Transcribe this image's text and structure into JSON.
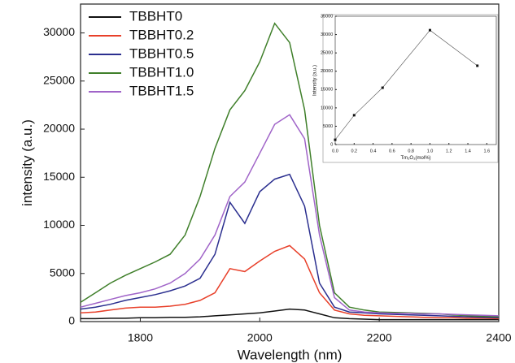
{
  "chart_data": [
    {
      "type": "line",
      "xlabel": "Wavelength (nm)",
      "ylabel": "intensity (a.u.)",
      "x": [
        1700,
        1725,
        1750,
        1775,
        1800,
        1825,
        1850,
        1875,
        1900,
        1925,
        1950,
        1975,
        2000,
        2025,
        2050,
        2075,
        2100,
        2125,
        2150,
        2175,
        2200,
        2225,
        2250,
        2275,
        2300,
        2325,
        2350,
        2375,
        2400
      ],
      "series": [
        {
          "name": "TBBHT0",
          "color": "#111111",
          "values": [
            300,
            300,
            350,
            350,
            400,
            400,
            450,
            450,
            500,
            600,
            700,
            800,
            900,
            1100,
            1300,
            1200,
            800,
            400,
            300,
            250,
            200,
            200,
            200,
            200,
            200,
            200,
            200,
            200,
            200
          ]
        },
        {
          "name": "TBBHT0.2",
          "color": "#e8402a",
          "values": [
            900,
            1000,
            1200,
            1400,
            1500,
            1500,
            1600,
            1800,
            2200,
            3000,
            5500,
            5200,
            6300,
            7300,
            7900,
            6500,
            3000,
            1200,
            800,
            650,
            600,
            550,
            500,
            450,
            400,
            400,
            350,
            350,
            300
          ]
        },
        {
          "name": "TBBHT0.5",
          "color": "#2b2f8f",
          "values": [
            1300,
            1500,
            1800,
            2200,
            2500,
            2800,
            3200,
            3700,
            4500,
            7000,
            12400,
            10200,
            13500,
            14800,
            15300,
            12000,
            4000,
            1500,
            1000,
            900,
            800,
            750,
            700,
            650,
            600,
            550,
            500,
            450,
            400
          ]
        },
        {
          "name": "TBBHT1.0",
          "color": "#3f7f2a",
          "values": [
            2000,
            3000,
            4000,
            4800,
            5500,
            6200,
            7000,
            9000,
            13000,
            18000,
            22000,
            24000,
            27000,
            31000,
            29000,
            22000,
            10000,
            3000,
            1500,
            1200,
            1000,
            950,
            900,
            850,
            800,
            700,
            600,
            550,
            500
          ]
        },
        {
          "name": "TBBHT1.5",
          "color": "#a064c8",
          "values": [
            1500,
            1900,
            2300,
            2700,
            3000,
            3400,
            4000,
            5000,
            6500,
            9000,
            13000,
            14500,
            17500,
            20500,
            21500,
            19000,
            9000,
            2500,
            1200,
            1000,
            900,
            850,
            850,
            800,
            800,
            750,
            700,
            650,
            600
          ]
        }
      ],
      "xlim": [
        1700,
        2400
      ],
      "xticks": [
        1800,
        2000,
        2200,
        2400
      ],
      "ylim": [
        0,
        33000
      ],
      "yticks": [
        0,
        5000,
        10000,
        15000,
        20000,
        25000,
        30000
      ],
      "legend": "upper left"
    },
    {
      "type": "line",
      "xlabel": "Tm₂O₃(mol%)",
      "ylabel": "Intensity (a.u.)",
      "markers": true,
      "x": [
        0,
        0.2,
        0.5,
        1.0,
        1.5
      ],
      "series": [
        {
          "color": "#555555",
          "values": [
            1300,
            8000,
            15500,
            31200,
            21500
          ]
        }
      ],
      "xlim": [
        0,
        1.7
      ],
      "xticks": [
        {
          "value": 0,
          "label": "0.0"
        },
        0.2,
        0.4,
        0.6,
        0.8,
        {
          "value": 1,
          "label": "1.0"
        },
        1.2,
        1.4,
        1.6
      ],
      "ylim": [
        0,
        35000
      ],
      "yticks": [
        0,
        5000,
        10000,
        15000,
        20000,
        25000,
        30000,
        35000
      ]
    }
  ]
}
